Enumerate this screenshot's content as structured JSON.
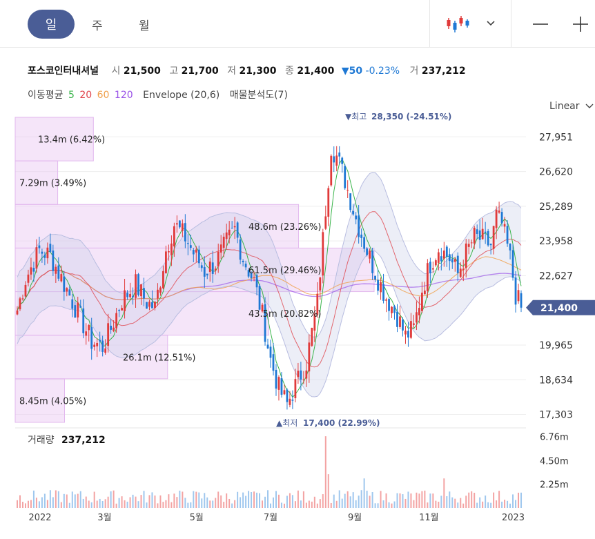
{
  "tabs": {
    "day": "일",
    "week": "주",
    "month": "월"
  },
  "controls": {
    "chart_type_icon": "candlestick-icon",
    "dropdown_icon": "chevron-down-icon",
    "zoom_out_icon": "minus-icon",
    "zoom_in_icon": "plus-icon"
  },
  "info": {
    "name": "포스코인터내셔널",
    "open_label": "시",
    "open": "21,500",
    "high_label": "고",
    "high": "21,700",
    "low_label": "저",
    "low": "21,300",
    "close_label": "종",
    "close": "21,400",
    "change": "▼50",
    "change_pct": "-0.23%",
    "volume_label": "거",
    "volume": "237,212"
  },
  "indicators": {
    "ma_label": "이동평균",
    "ma5": "5",
    "ma20": "20",
    "ma60": "60",
    "ma120": "120",
    "envelope": "Envelope (20,6)",
    "volume_profile": "매물분석도(7)"
  },
  "scale_mode": "Linear",
  "colors": {
    "up": "#e03a3a",
    "down": "#1e78d4",
    "accent": "#4a5d96",
    "ma5": "#39b44a",
    "ma20": "#e0434b",
    "ma60": "#f0a04b",
    "ma120": "#9b55e8",
    "envelope": "#b8bde0",
    "profile": "#e9c6f2"
  },
  "chart_data": {
    "type": "candlestick",
    "y_ticks": [
      "27,951",
      "26,620",
      "25,289",
      "23,958",
      "22,627",
      "21,400",
      "19,965",
      "18,634",
      "17,303"
    ],
    "ylim": [
      17000,
      28700
    ],
    "x_ticks": [
      "2022",
      "3월",
      "5월",
      "7월",
      "9월",
      "11월",
      "2023"
    ],
    "current_price": "21,400",
    "high_annotation": {
      "label": "▼최고",
      "value": "28,350 (-24.51%)",
      "price": 28350
    },
    "low_annotation": {
      "label": "▲최저",
      "value": "17,400 (22.99%)",
      "price": 17400
    },
    "volume_profile": [
      {
        "label": "13.4m (6.42%)",
        "share": 6.42
      },
      {
        "label": "7.29m (3.49%)",
        "share": 3.49
      },
      {
        "label": "48.6m (23.26%)",
        "share": 23.26
      },
      {
        "label": "61.5m (29.46%)",
        "share": 29.46
      },
      {
        "label": "43.5m (20.82%)",
        "share": 20.82
      },
      {
        "label": "26.1m (12.51%)",
        "share": 12.51
      },
      {
        "label": "8.45m (4.05%)",
        "share": 4.05
      }
    ],
    "price_path": [
      [
        0,
        21300
      ],
      [
        3,
        22500
      ],
      [
        8,
        23600
      ],
      [
        12,
        23400
      ],
      [
        18,
        22100
      ],
      [
        22,
        21200
      ],
      [
        27,
        20100
      ],
      [
        31,
        19900
      ],
      [
        34,
        20600
      ],
      [
        38,
        21700
      ],
      [
        43,
        22300
      ],
      [
        47,
        21600
      ],
      [
        50,
        21400
      ],
      [
        54,
        23600
      ],
      [
        57,
        24600
      ],
      [
        61,
        24100
      ],
      [
        64,
        23500
      ],
      [
        68,
        22800
      ],
      [
        72,
        23100
      ],
      [
        76,
        23900
      ],
      [
        79,
        24400
      ],
      [
        82,
        23300
      ],
      [
        86,
        22400
      ],
      [
        89,
        21100
      ],
      [
        92,
        19400
      ],
      [
        95,
        18300
      ],
      [
        98,
        17700
      ],
      [
        101,
        18400
      ],
      [
        105,
        19300
      ],
      [
        109,
        21600
      ],
      [
        112,
        25200
      ],
      [
        114,
        27600
      ],
      [
        116,
        27200
      ],
      [
        119,
        26300
      ],
      [
        123,
        24800
      ],
      [
        127,
        23600
      ],
      [
        131,
        22500
      ],
      [
        134,
        21800
      ],
      [
        138,
        21100
      ],
      [
        141,
        20300
      ],
      [
        144,
        20600
      ],
      [
        147,
        22100
      ],
      [
        150,
        23100
      ],
      [
        153,
        23700
      ],
      [
        157,
        23300
      ],
      [
        160,
        22700
      ],
      [
        163,
        23500
      ],
      [
        166,
        24100
      ],
      [
        169,
        24000
      ],
      [
        172,
        23800
      ],
      [
        174,
        24900
      ],
      [
        176,
        24600
      ],
      [
        179,
        23300
      ],
      [
        181,
        21900
      ],
      [
        183,
        21400
      ]
    ],
    "volume_title": "거래량",
    "volume_value": "237,212",
    "volume_ticks": [
      "6.76m",
      "4.50m",
      "2.25m"
    ]
  }
}
